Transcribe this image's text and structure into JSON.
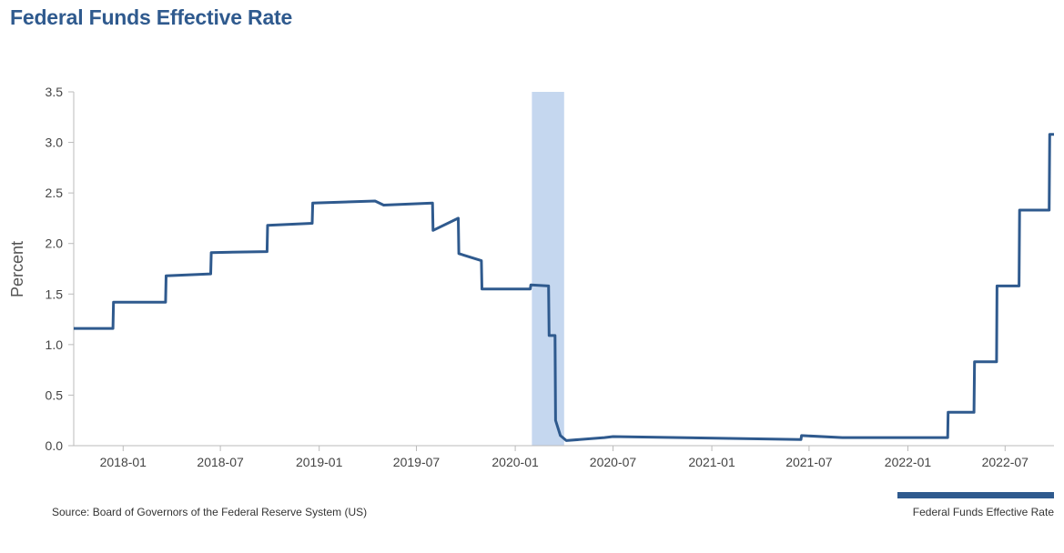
{
  "chart_data": {
    "type": "line",
    "title": "Federal Funds Effective Rate",
    "ylabel": "Percent",
    "xlabel": "",
    "ylim": [
      0,
      3.5
    ],
    "xlim": [
      "2017-10-01",
      "2022-09-30"
    ],
    "yticks": [
      "0.0",
      "0.5",
      "1.0",
      "1.5",
      "2.0",
      "2.5",
      "3.0",
      "3.5"
    ],
    "xticks": [
      "2018-01",
      "2018-07",
      "2019-01",
      "2019-07",
      "2020-01",
      "2020-07",
      "2021-01",
      "2021-07",
      "2022-01",
      "2022-07"
    ],
    "grid": false,
    "legend_position": "bottom-right",
    "recession_band": {
      "start": "2020-02-01",
      "end": "2020-04-01"
    },
    "series": [
      {
        "name": "Federal Funds Effective Rate",
        "color": "#2f5a8e",
        "points": [
          [
            "2017-10-01",
            1.16
          ],
          [
            "2017-12-13",
            1.16
          ],
          [
            "2017-12-14",
            1.42
          ],
          [
            "2018-03-21",
            1.42
          ],
          [
            "2018-03-22",
            1.68
          ],
          [
            "2018-06-13",
            1.7
          ],
          [
            "2018-06-14",
            1.91
          ],
          [
            "2018-09-26",
            1.92
          ],
          [
            "2018-09-27",
            2.18
          ],
          [
            "2018-12-19",
            2.2
          ],
          [
            "2018-12-20",
            2.4
          ],
          [
            "2019-04-15",
            2.42
          ],
          [
            "2019-05-01",
            2.38
          ],
          [
            "2019-07-31",
            2.4
          ],
          [
            "2019-08-01",
            2.13
          ],
          [
            "2019-09-17",
            2.25
          ],
          [
            "2019-09-18",
            1.9
          ],
          [
            "2019-10-30",
            1.83
          ],
          [
            "2019-10-31",
            1.55
          ],
          [
            "2020-01-29",
            1.55
          ],
          [
            "2020-01-30",
            1.59
          ],
          [
            "2020-03-03",
            1.58
          ],
          [
            "2020-03-04",
            1.09
          ],
          [
            "2020-03-15",
            1.09
          ],
          [
            "2020-03-16",
            0.25
          ],
          [
            "2020-03-25",
            0.1
          ],
          [
            "2020-04-05",
            0.05
          ],
          [
            "2020-06-15",
            0.08
          ],
          [
            "2020-07-01",
            0.09
          ],
          [
            "2021-06-16",
            0.06
          ],
          [
            "2021-06-17",
            0.1
          ],
          [
            "2021-09-01",
            0.08
          ],
          [
            "2022-03-16",
            0.08
          ],
          [
            "2022-03-17",
            0.33
          ],
          [
            "2022-05-04",
            0.33
          ],
          [
            "2022-05-05",
            0.83
          ],
          [
            "2022-06-15",
            0.83
          ],
          [
            "2022-06-16",
            1.58
          ],
          [
            "2022-07-27",
            1.58
          ],
          [
            "2022-07-28",
            2.33
          ],
          [
            "2022-09-21",
            2.33
          ],
          [
            "2022-09-22",
            3.08
          ],
          [
            "2022-09-30",
            3.08
          ]
        ]
      }
    ]
  },
  "source": "Source: Board of Governors of the Federal Reserve System (US)",
  "legend": [
    {
      "label": "Federal Funds Effective Rate",
      "color": "#2f5a8e"
    }
  ],
  "colors": {
    "line": "#2f5a8e",
    "band": "#c5d7ef",
    "axis": "#bbbbbb"
  }
}
